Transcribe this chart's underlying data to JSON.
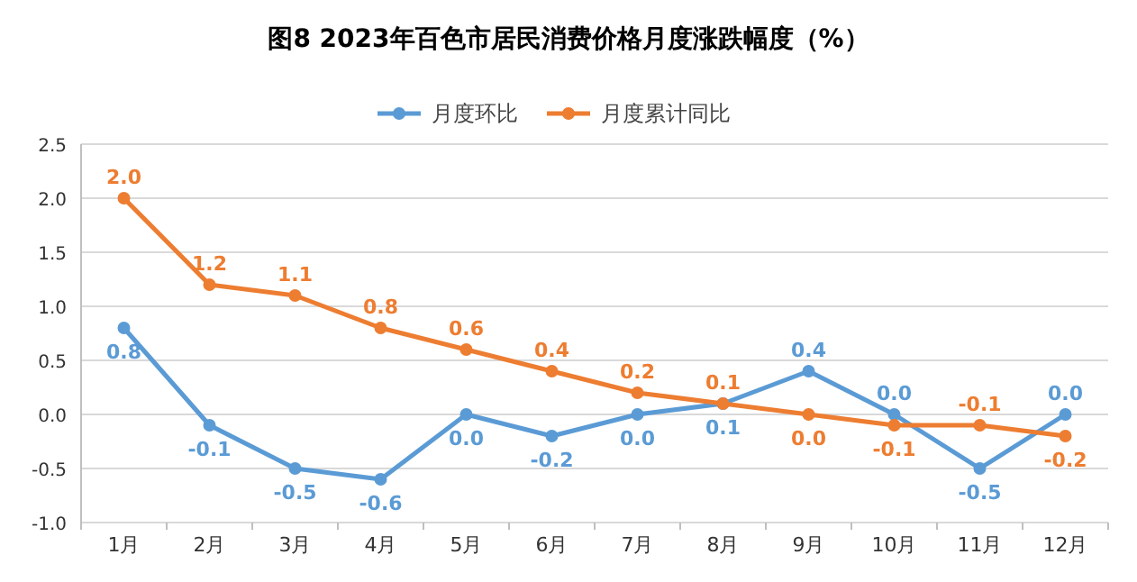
{
  "chart_data": {
    "type": "line",
    "title": "图8  2023年百色市居民消费价格月度涨跌幅度（%）",
    "categories": [
      "1月",
      "2月",
      "3月",
      "4月",
      "5月",
      "6月",
      "7月",
      "8月",
      "9月",
      "10月",
      "11月",
      "12月"
    ],
    "series": [
      {
        "name": "月度环比",
        "color": "#5b9bd5",
        "values": [
          0.8,
          -0.1,
          -0.5,
          -0.6,
          0.0,
          -0.2,
          0.0,
          0.1,
          0.4,
          0.0,
          -0.5,
          0.0
        ],
        "value_labels": [
          "0.8",
          "-0.1",
          "-0.5",
          "-0.6",
          "0.0",
          "-0.2",
          "0.0",
          "0.1",
          "0.4",
          "0.0",
          "-0.5",
          "0.0"
        ]
      },
      {
        "name": "月度累计同比",
        "color": "#ed7d31",
        "values": [
          2.0,
          1.2,
          1.1,
          0.8,
          0.6,
          0.4,
          0.2,
          0.1,
          0.0,
          -0.1,
          -0.1,
          -0.2
        ],
        "value_labels": [
          "2.0",
          "1.2",
          "1.1",
          "0.8",
          "0.6",
          "0.4",
          "0.2",
          "0.1",
          "0.0",
          "-0.1",
          "-0.1",
          "-0.2"
        ]
      }
    ],
    "ylim": [
      -1.0,
      2.5
    ],
    "yticks": [
      {
        "value": -1.0,
        "label": "-1.0"
      },
      {
        "value": -0.5,
        "label": "-0.5"
      },
      {
        "value": 0,
        "label": "0.0"
      },
      {
        "value": 0.5,
        "label": "0.5"
      },
      {
        "value": 1.0,
        "label": "1.0"
      },
      {
        "value": 1.5,
        "label": "1.5"
      },
      {
        "value": 2.0,
        "label": "2.0"
      },
      {
        "value": 2.5,
        "label": "2.5"
      }
    ],
    "grid": "y",
    "legend": "top",
    "marker": "circle"
  }
}
